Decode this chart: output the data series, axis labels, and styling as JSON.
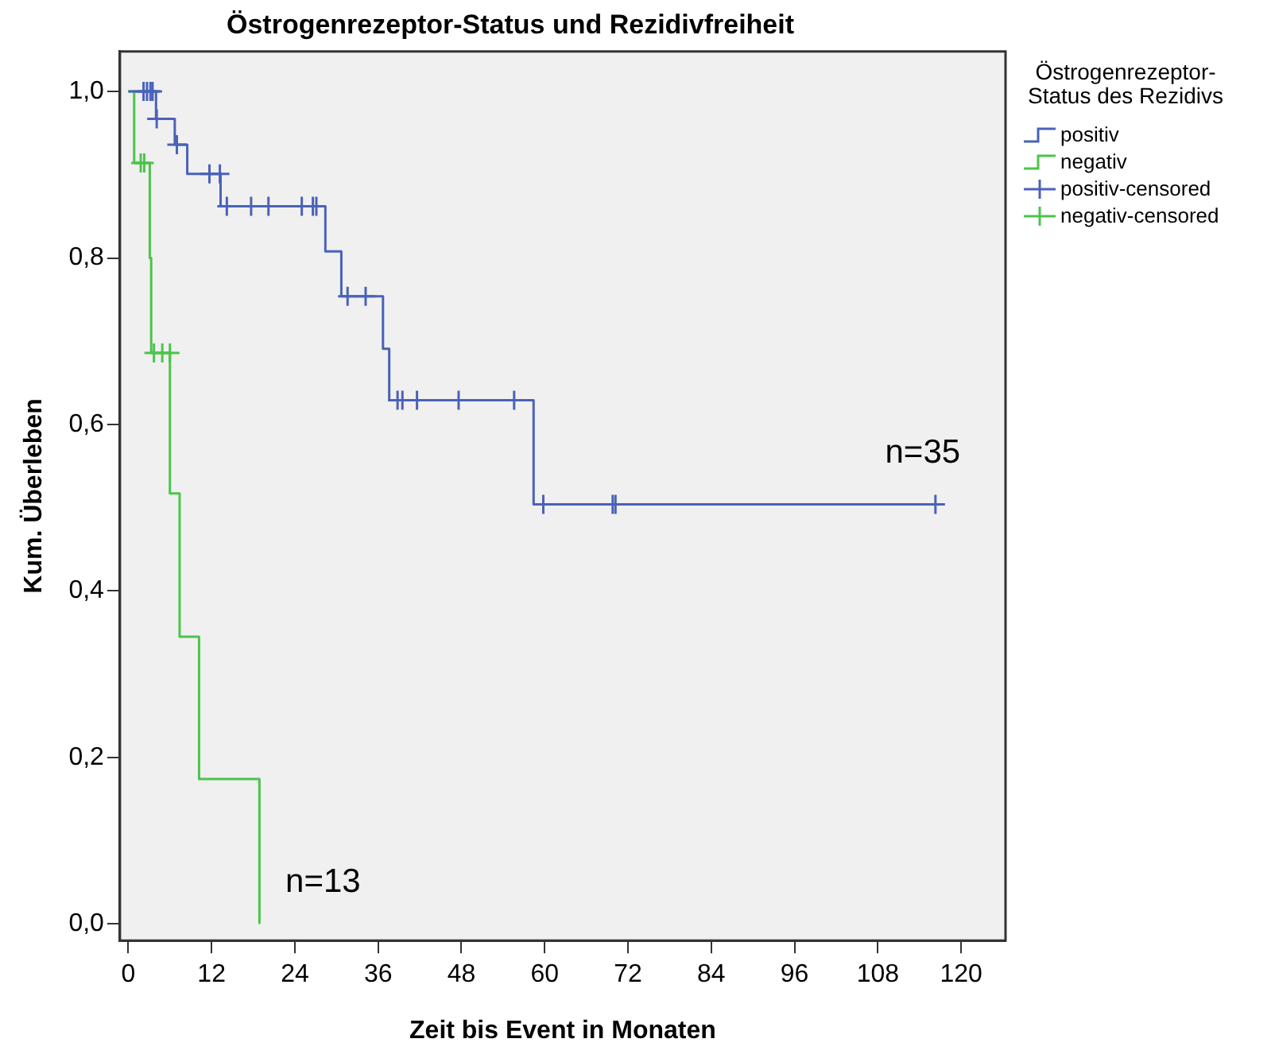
{
  "chart_data": {
    "type": "step",
    "title": "Östrogenrezeptor-Status und Rezidivfreiheit",
    "xlabel": "Zeit bis Event in Monaten",
    "ylabel": "Kum. Überleben",
    "legend_title": "Östrogenrezeptor-Status des Rezidivs",
    "legend": "right",
    "grid": false,
    "xlim": [
      -1.2,
      126.4
    ],
    "xticks": [
      0,
      12,
      24,
      36,
      48,
      60,
      72,
      84,
      96,
      108,
      120
    ],
    "ylim": [
      -0.02,
      1.048
    ],
    "yticks": [
      {
        "value": 0,
        "label": "0,0"
      },
      {
        "value": 0.2,
        "label": "0,2"
      },
      {
        "value": 0.4,
        "label": "0,4"
      },
      {
        "value": 0.6,
        "label": "0,6"
      },
      {
        "value": 0.8,
        "label": "0,8"
      },
      {
        "value": 1,
        "label": "1,0"
      }
    ],
    "series": [
      {
        "name": "positiv",
        "color": "#4a62b8",
        "x": [
          0,
          4.0,
          6.7,
          8.5,
          13.3,
          28.4,
          30.7,
          36.7,
          37.6,
          58.4,
          116.3
        ],
        "values": [
          1,
          0.967,
          0.936,
          0.901,
          0.862,
          0.808,
          0.754,
          0.691,
          0.629,
          0.504,
          0.504
        ]
      },
      {
        "name": "negativ",
        "color": "#4cc44c",
        "x": [
          0,
          0.85,
          3.1,
          3.3,
          6.0,
          7.4,
          10.2,
          18.9
        ],
        "values": [
          1,
          0.914,
          0.8,
          0.686,
          0.517,
          0.345,
          0.174,
          0
        ]
      },
      {
        "name": "positiv-censored",
        "type": "scatter",
        "marker": "cross",
        "color": "#4a62b8",
        "x": [
          2.2,
          2.7,
          3.2,
          3.5,
          4.1,
          7.0,
          11.7,
          13.2,
          14.2,
          17.7,
          20.2,
          25.0,
          26.6,
          27.1,
          31.6,
          34.2,
          38.8,
          39.5,
          41.6,
          47.6,
          55.6,
          59.8,
          69.8,
          70.2,
          116.3
        ],
        "values": [
          1,
          1,
          1,
          1,
          0.967,
          0.936,
          0.901,
          0.901,
          0.862,
          0.862,
          0.862,
          0.862,
          0.862,
          0.862,
          0.754,
          0.754,
          0.629,
          0.629,
          0.629,
          0.629,
          0.629,
          0.504,
          0.504,
          0.504,
          0.504
        ]
      },
      {
        "name": "negativ-censored",
        "type": "scatter",
        "marker": "cross",
        "color": "#4cc44c",
        "x": [
          1.8,
          2.3,
          3.7,
          4.9,
          6.0
        ],
        "values": [
          0.914,
          0.914,
          0.686,
          0.686,
          0.686
        ]
      }
    ],
    "annotations": [
      "n=35",
      "n=13"
    ]
  }
}
